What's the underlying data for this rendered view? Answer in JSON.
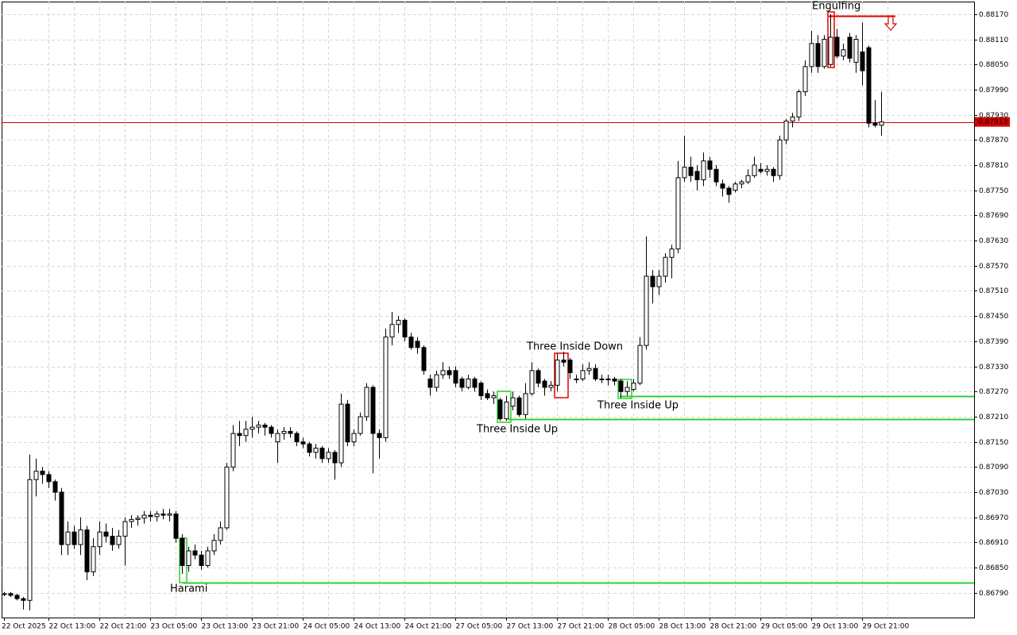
{
  "chart_data": {
    "type": "candlestick",
    "categories": [
      "22 Oct 2025",
      null,
      null,
      null,
      null,
      null,
      null,
      "22 Oct 13:00",
      null,
      null,
      null,
      null,
      null,
      null,
      null,
      "22 Oct 21:00",
      null,
      null,
      null,
      null,
      null,
      null,
      null,
      "23 Oct 05:00",
      null,
      null,
      null,
      null,
      null,
      null,
      null,
      "23 Oct 13:00",
      null,
      null,
      null,
      null,
      null,
      null,
      null,
      "23 Oct 21:00",
      null,
      null,
      null,
      null,
      null,
      null,
      null,
      "24 Oct 05:00",
      null,
      null,
      null,
      null,
      null,
      null,
      null,
      "24 Oct 13:00",
      null,
      null,
      null,
      null,
      null,
      null,
      null,
      "24 Oct 21:00",
      null,
      null,
      null,
      null,
      null,
      null,
      null,
      "27 Oct 05:00",
      null,
      null,
      null,
      null,
      null,
      null,
      null,
      "27 Oct 13:00",
      null,
      null,
      null,
      null,
      null,
      null,
      null,
      "27 Oct 21:00",
      null,
      null,
      null,
      null,
      null,
      null,
      null,
      "28 Oct 05:00",
      null,
      null,
      null,
      null,
      null,
      null,
      null,
      "28 Oct 13:00",
      null,
      null,
      null,
      null,
      null,
      null,
      null,
      "28 Oct 21:00",
      null,
      null,
      null,
      null,
      null,
      null,
      null,
      "29 Oct 05:00",
      null,
      null,
      null,
      null,
      null,
      null,
      null,
      "29 Oct 13:00",
      null,
      null,
      null,
      null,
      null,
      null,
      null,
      "29 Oct 21:00",
      null,
      null,
      null
    ],
    "open": [
      0.86786,
      0.86788,
      0.86784,
      0.86776,
      0.86772,
      0.8706,
      0.8708,
      0.87072,
      0.87055,
      0.8703,
      0.86905,
      0.86935,
      0.86905,
      0.8694,
      0.8684,
      0.869,
      0.86935,
      0.86925,
      0.86905,
      0.86925,
      0.8696,
      0.86965,
      0.86968,
      0.86975,
      0.86972,
      0.86978,
      0.86975,
      0.86978,
      0.8692,
      0.86855,
      0.8689,
      0.8688,
      0.86855,
      0.8689,
      0.86915,
      0.86945,
      0.8709,
      0.8717,
      0.87165,
      0.8718,
      0.87185,
      0.8719,
      0.87185,
      0.8715,
      0.8717,
      0.87175,
      0.8717,
      0.8715,
      0.87145,
      0.87125,
      0.87135,
      0.8711,
      0.87125,
      0.871,
      0.8724,
      0.8715,
      0.8717,
      0.8721,
      0.8728,
      0.8717,
      0.8716,
      0.874,
      0.8743,
      0.8744,
      0.874,
      0.8739,
      0.87375,
      0.873,
      0.8728,
      0.8731,
      0.8732,
      0.8732,
      0.873,
      0.8728,
      0.873,
      0.8729,
      0.87265,
      0.87255,
      0.8725,
      0.87205,
      0.87235,
      0.87255,
      0.87215,
      0.87265,
      0.8732,
      0.87295,
      0.8728,
      0.87285,
      0.87345,
      0.87345,
      0.873,
      0.873,
      0.8732,
      0.87325,
      0.873,
      0.87298,
      0.873,
      0.87295,
      0.8727,
      0.87275,
      0.8729,
      0.8738,
      0.87545,
      0.8752,
      0.87545,
      0.8759,
      0.8761,
      0.8778,
      0.87805,
      0.87795,
      0.87775,
      0.8782,
      0.878,
      0.87765,
      0.87755,
      0.8775,
      0.87765,
      0.8777,
      0.87785,
      0.878,
      0.87795,
      0.878,
      0.87785,
      0.8787,
      0.87915,
      0.87925,
      0.87985,
      0.88045,
      0.881,
      0.88045,
      0.8805,
      0.88115,
      0.8807,
      0.88115,
      0.88055,
      0.8808,
      0.8809,
      0.8791,
      0.87905
    ],
    "high": [
      0.86792,
      0.86792,
      0.86788,
      0.8678,
      0.8712,
      0.8711,
      0.8709,
      0.8708,
      0.8706,
      0.8704,
      0.8696,
      0.8695,
      0.8697,
      0.8695,
      0.8692,
      0.8696,
      0.86955,
      0.86945,
      0.8694,
      0.8697,
      0.86975,
      0.86975,
      0.86985,
      0.86985,
      0.86985,
      0.8699,
      0.8699,
      0.86985,
      0.8693,
      0.869,
      0.86905,
      0.8689,
      0.869,
      0.8693,
      0.8696,
      0.871,
      0.8719,
      0.872,
      0.872,
      0.8721,
      0.872,
      0.87195,
      0.8719,
      0.8718,
      0.87185,
      0.87185,
      0.87175,
      0.8716,
      0.8715,
      0.87145,
      0.8714,
      0.87135,
      0.8713,
      0.87265,
      0.8725,
      0.8718,
      0.8722,
      0.8729,
      0.87285,
      0.8718,
      0.8742,
      0.8746,
      0.8745,
      0.87445,
      0.8741,
      0.874,
      0.8738,
      0.8731,
      0.8732,
      0.8734,
      0.8733,
      0.8733,
      0.87305,
      0.8731,
      0.87305,
      0.87295,
      0.87275,
      0.8727,
      0.87255,
      0.8726,
      0.8727,
      0.8726,
      0.8729,
      0.8734,
      0.87325,
      0.873,
      0.87295,
      0.8736,
      0.87365,
      0.8735,
      0.8731,
      0.87335,
      0.8734,
      0.87335,
      0.8731,
      0.8731,
      0.87305,
      0.873,
      0.87295,
      0.873,
      0.874,
      0.8764,
      0.8756,
      0.8756,
      0.876,
      0.8762,
      0.8782,
      0.8788,
      0.8783,
      0.8781,
      0.8784,
      0.8783,
      0.8781,
      0.87775,
      0.8776,
      0.8777,
      0.87775,
      0.878,
      0.8783,
      0.87815,
      0.8781,
      0.87805,
      0.8788,
      0.8792,
      0.87935,
      0.8799,
      0.8806,
      0.8813,
      0.8812,
      0.8812,
      0.8817,
      0.88135,
      0.881,
      0.88125,
      0.8812,
      0.8815,
      0.88095,
      0.87965,
      0.87985
    ],
    "low": [
      0.86782,
      0.8678,
      0.86772,
      0.8675,
      0.86748,
      0.8702,
      0.8705,
      0.8704,
      0.8701,
      0.8688,
      0.8688,
      0.86895,
      0.8688,
      0.8682,
      0.8683,
      0.8688,
      0.8691,
      0.8689,
      0.86895,
      0.86855,
      0.86945,
      0.8695,
      0.86955,
      0.8696,
      0.8696,
      0.86965,
      0.8696,
      0.8691,
      0.86835,
      0.8684,
      0.8687,
      0.86845,
      0.8685,
      0.8688,
      0.86905,
      0.8694,
      0.8708,
      0.8714,
      0.8715,
      0.8716,
      0.8717,
      0.87165,
      0.8716,
      0.871,
      0.87155,
      0.8716,
      0.8714,
      0.87135,
      0.87115,
      0.8711,
      0.871,
      0.871,
      0.8706,
      0.8709,
      0.8714,
      0.8714,
      0.87165,
      0.872,
      0.87075,
      0.8711,
      0.8715,
      0.8738,
      0.8741,
      0.8739,
      0.8737,
      0.8736,
      0.8731,
      0.8726,
      0.8727,
      0.873,
      0.873,
      0.8728,
      0.8727,
      0.87275,
      0.8727,
      0.8725,
      0.8725,
      0.8724,
      0.872,
      0.872,
      0.87225,
      0.8721,
      0.87205,
      0.8726,
      0.8728,
      0.8726,
      0.8727,
      0.8727,
      0.8733,
      0.873,
      0.8729,
      0.87295,
      0.8731,
      0.87295,
      0.8729,
      0.87285,
      0.87285,
      0.87255,
      0.8726,
      0.8727,
      0.87285,
      0.8737,
      0.8748,
      0.875,
      0.8753,
      0.8754,
      0.876,
      0.8777,
      0.8777,
      0.8775,
      0.8776,
      0.8778,
      0.8776,
      0.87735,
      0.8772,
      0.87745,
      0.87755,
      0.87765,
      0.8778,
      0.8779,
      0.87785,
      0.8777,
      0.87775,
      0.8786,
      0.879,
      0.87915,
      0.87975,
      0.8803,
      0.8803,
      0.8804,
      0.88045,
      0.88065,
      0.8806,
      0.88055,
      0.8803,
      0.88,
      0.879,
      0.879,
      0.8788
    ],
    "close": [
      0.86788,
      0.86784,
      0.86776,
      0.86772,
      0.8706,
      0.8708,
      0.87072,
      0.87055,
      0.8703,
      0.86905,
      0.86935,
      0.86905,
      0.8694,
      0.8684,
      0.869,
      0.86935,
      0.86925,
      0.86905,
      0.86925,
      0.8696,
      0.86965,
      0.86968,
      0.86975,
      0.86972,
      0.86978,
      0.86975,
      0.86978,
      0.8692,
      0.86855,
      0.8689,
      0.8688,
      0.86855,
      0.8689,
      0.86915,
      0.86945,
      0.8709,
      0.8717,
      0.87165,
      0.8718,
      0.87185,
      0.8719,
      0.87185,
      0.8717,
      0.8717,
      0.87175,
      0.8717,
      0.8715,
      0.87145,
      0.87125,
      0.87135,
      0.8711,
      0.87125,
      0.871,
      0.8724,
      0.8715,
      0.8717,
      0.8721,
      0.8728,
      0.8717,
      0.8716,
      0.874,
      0.8743,
      0.8744,
      0.874,
      0.87375,
      0.87375,
      0.8732,
      0.8728,
      0.8731,
      0.8732,
      0.8731,
      0.8729,
      0.8728,
      0.873,
      0.8728,
      0.8726,
      0.87255,
      0.8726,
      0.87205,
      0.87245,
      0.87255,
      0.87215,
      0.87265,
      0.8732,
      0.8729,
      0.8728,
      0.87285,
      0.87345,
      0.8734,
      0.87315,
      0.873,
      0.8732,
      0.87325,
      0.873,
      0.87298,
      0.873,
      0.87295,
      0.8727,
      0.8728,
      0.8729,
      0.8738,
      0.87545,
      0.8752,
      0.87545,
      0.8759,
      0.8761,
      0.8778,
      0.87805,
      0.87785,
      0.87775,
      0.8782,
      0.878,
      0.8777,
      0.87755,
      0.8774,
      0.87765,
      0.8777,
      0.87785,
      0.8781,
      0.87795,
      0.878,
      0.87785,
      0.8787,
      0.87915,
      0.87925,
      0.87985,
      0.88045,
      0.881,
      0.88045,
      0.8811,
      0.88115,
      0.8807,
      0.88085,
      0.88065,
      0.8811,
      0.88035,
      0.8791,
      0.87905,
      0.87913
    ],
    "up_color": "#ffffff",
    "down_color": "#000000",
    "ylim": [
      0.86731,
      0.882
    ],
    "yticks": [
      {
        "value": 0.8679,
        "label": "0.86790"
      },
      {
        "value": 0.8685,
        "label": "0.86850"
      },
      {
        "value": 0.8691,
        "label": "0.86910"
      },
      {
        "value": 0.8697,
        "label": "0.86970"
      },
      {
        "value": 0.8703,
        "label": "0.87030"
      },
      {
        "value": 0.8709,
        "label": "0.87090"
      },
      {
        "value": 0.8715,
        "label": "0.87150"
      },
      {
        "value": 0.8721,
        "label": "0.87210"
      },
      {
        "value": 0.8727,
        "label": "0.87270"
      },
      {
        "value": 0.8733,
        "label": "0.87330"
      },
      {
        "value": 0.8739,
        "label": "0.87390"
      },
      {
        "value": 0.8745,
        "label": "0.87450"
      },
      {
        "value": 0.8751,
        "label": "0.87510"
      },
      {
        "value": 0.8757,
        "label": "0.87570"
      },
      {
        "value": 0.8763,
        "label": "0.87630"
      },
      {
        "value": 0.8769,
        "label": "0.87690"
      },
      {
        "value": 0.8775,
        "label": "0.87750"
      },
      {
        "value": 0.8781,
        "label": "0.87810"
      },
      {
        "value": 0.8787,
        "label": "0.87870"
      },
      {
        "value": 0.8793,
        "label": "0.87930"
      },
      {
        "value": 0.8799,
        "label": "0.87990"
      },
      {
        "value": 0.8805,
        "label": "0.88050"
      },
      {
        "value": 0.8811,
        "label": "0.88110"
      },
      {
        "value": 0.8817,
        "label": "0.88170"
      }
    ],
    "grid": true,
    "current_price": 0.87913,
    "current_color": "#d40000",
    "levels": [
      {
        "value": 0.86815,
        "color": "#32cd32"
      },
      {
        "value": 0.87205,
        "color": "#32cd32"
      },
      {
        "value": 0.8726,
        "color": "#32cd32"
      },
      {
        "value": 0.88165,
        "color": "#e00000"
      }
    ],
    "annotations": [
      {
        "text": "Harami",
        "color": "#32cd32"
      },
      {
        "text": "Three Inside Up",
        "color": "#32cd32"
      },
      {
        "text": "Three Inside Down",
        "color": "#e00000"
      },
      {
        "text": "Three Inside Up",
        "color": "#32cd32"
      },
      {
        "text": "Engulfing",
        "color": "#e00000"
      }
    ]
  }
}
